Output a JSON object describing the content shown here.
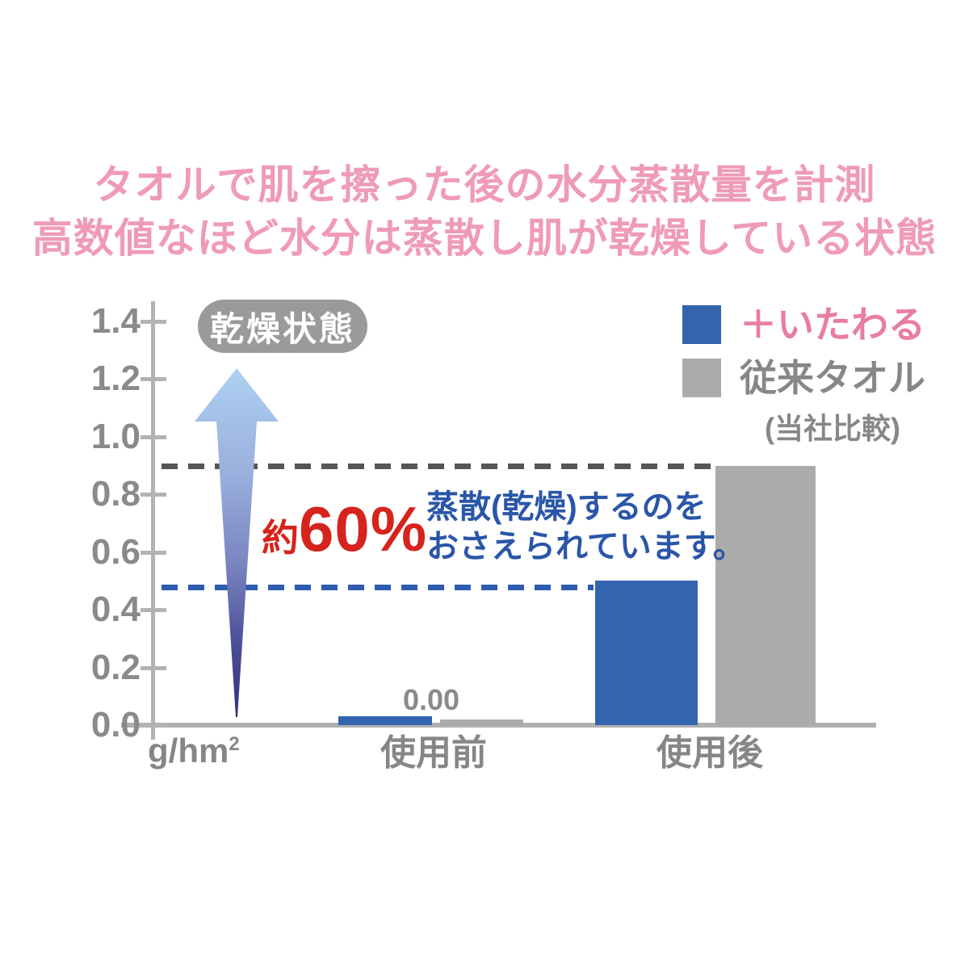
{
  "title": {
    "line1": "タオルで肌を擦った後の水分蒸散量を計測",
    "line2": "高数値なほど水分は蒸散し肌が乾燥している状態",
    "color": "#ef9bb6"
  },
  "chart_data": {
    "type": "bar",
    "categories": [
      "使用前",
      "使用後"
    ],
    "series": [
      {
        "name": "＋いたわる",
        "color": "#3464ae",
        "values": [
          0.03,
          0.5
        ]
      },
      {
        "name": "従来タオル",
        "color": "#ababab",
        "values": [
          0.02,
          0.9
        ]
      }
    ],
    "y_ticks": [
      "1.4",
      "1.2",
      "1.0",
      "0.8",
      "0.6",
      "0.4",
      "0.2",
      "0.0"
    ],
    "ylim": [
      0,
      1.4
    ],
    "unit_base": "g/hm",
    "unit_sup": "2",
    "data_label_pre": "0.00",
    "reference_lines": [
      {
        "value": 0.9,
        "color": "#565656",
        "style": "dashed"
      },
      {
        "value": 0.48,
        "color": "#2e5cae",
        "style": "dashed"
      }
    ],
    "grid": false,
    "legend_position": "top-right"
  },
  "annotations": {
    "dry_state_badge": "乾燥状態",
    "arrow": "up-arrow-dry-direction",
    "reduction_prefix": "約",
    "reduction_value": "60%",
    "reduction_color": "#d6231b",
    "note_line1": "蒸散(乾燥)するのを",
    "note_line2": "おさえられています。",
    "note_color": "#2a56a8"
  },
  "legend": {
    "items": [
      {
        "label": "＋いたわる",
        "color": "#3464ae",
        "text_color": "#e87da3"
      },
      {
        "label": "従来タオル",
        "color": "#ababab",
        "text_color": "#87878a"
      }
    ],
    "note": "(当社比較)"
  }
}
